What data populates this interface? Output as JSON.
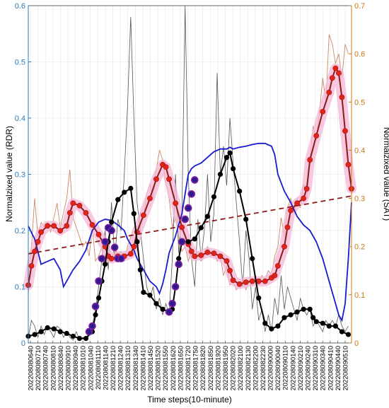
{
  "chart_data": {
    "type": "line",
    "xlabel": "Time steps(10-minute)",
    "ylabel_left": "Normalzixed value (RDR)",
    "ylabel_right": "Normalzixed value (SAT)",
    "ylim_left": [
      0,
      0.6
    ],
    "ylim_right": [
      0,
      0.7
    ],
    "grid": true,
    "colors": {
      "rdr_raw": "#555555",
      "rdr_smooth": "#000000",
      "rdr_highlight": "#7a1fa2",
      "sat_raw": "#c98a6a",
      "sat_smooth": "#8b1a1a",
      "sat_marker": "#e0241a",
      "sat_halo": "#f5b5d5",
      "blue": "#1a1ad0",
      "trend": "#8b1a1a",
      "left_axis": "#2a7ab8",
      "right_axis": "#c87818"
    },
    "left_ticks": [
      "0",
      "0.1",
      "0.2",
      "0.3",
      "0.4",
      "0.5",
      "0.6"
    ],
    "right_ticks": [
      "0",
      "0.1",
      "0.2",
      "0.3",
      "0.4",
      "0.5",
      "0.6",
      "0.7"
    ],
    "x_tick_labels": [
      "202208080640",
      "202208080710",
      "202208080740",
      "202208080810",
      "202208080840",
      "202208080910",
      "202208080940",
      "202208081010",
      "202208081040",
      "202208081110",
      "202208081140",
      "202208081210",
      "202208081240",
      "202208081310",
      "202208081340",
      "202208081410",
      "202208081450",
      "202208081520",
      "202208081550",
      "202208081620",
      "202208081650",
      "202208081720",
      "202208081750",
      "202208081820",
      "202208081850",
      "202208081920",
      "202208081950",
      "202208082020",
      "202208082100",
      "202208082130",
      "202208082200",
      "202208082230",
      "202208090000",
      "202208090040",
      "202208090110",
      "202208090140",
      "202208090210",
      "202208090240",
      "202208090310",
      "202208090340",
      "202208090410",
      "202208090440",
      "202208090510"
    ],
    "rdr_smooth": [
      [
        0,
        0.012
      ],
      [
        2,
        0.015
      ],
      [
        4,
        0.02
      ],
      [
        6,
        0.027
      ],
      [
        8,
        0.025
      ],
      [
        10,
        0.02
      ],
      [
        12,
        0.017
      ],
      [
        14,
        0.012
      ],
      [
        16,
        0.008
      ],
      [
        18,
        0.008
      ],
      [
        20,
        0.02
      ],
      [
        21,
        0.05
      ],
      [
        22,
        0.08
      ],
      [
        23,
        0.11
      ],
      [
        24,
        0.14
      ],
      [
        25,
        0.18
      ],
      [
        26,
        0.215
      ],
      [
        28,
        0.255
      ],
      [
        30,
        0.268
      ],
      [
        32,
        0.275
      ],
      [
        33,
        0.23
      ],
      [
        34,
        0.18
      ],
      [
        35,
        0.13
      ],
      [
        36,
        0.09
      ],
      [
        38,
        0.085
      ],
      [
        40,
        0.07
      ],
      [
        42,
        0.06
      ],
      [
        44,
        0.055
      ],
      [
        45,
        0.06
      ],
      [
        46,
        0.1
      ],
      [
        47,
        0.15
      ],
      [
        48,
        0.18
      ],
      [
        50,
        0.18
      ],
      [
        52,
        0.185
      ],
      [
        54,
        0.205
      ],
      [
        56,
        0.225
      ],
      [
        58,
        0.26
      ],
      [
        60,
        0.3
      ],
      [
        62,
        0.33
      ],
      [
        63,
        0.338
      ],
      [
        64,
        0.31
      ],
      [
        66,
        0.27
      ],
      [
        68,
        0.22
      ],
      [
        70,
        0.15
      ],
      [
        72,
        0.08
      ],
      [
        74,
        0.035
      ],
      [
        76,
        0.025
      ],
      [
        78,
        0.03
      ],
      [
        80,
        0.045
      ],
      [
        82,
        0.05
      ],
      [
        84,
        0.055
      ],
      [
        86,
        0.06
      ],
      [
        88,
        0.06
      ],
      [
        89,
        0.045
      ],
      [
        90,
        0.038
      ],
      [
        92,
        0.035
      ],
      [
        94,
        0.03
      ],
      [
        96,
        0.03
      ],
      [
        98,
        0.02
      ],
      [
        100,
        0.015
      ]
    ],
    "rdr_highlight": [
      [
        19,
        0.02
      ],
      [
        20,
        0.03
      ],
      [
        21,
        0.065
      ],
      [
        22,
        0.11
      ],
      [
        23,
        0.15
      ],
      [
        24,
        0.18
      ],
      [
        25,
        0.205
      ],
      [
        26,
        0.2
      ],
      [
        27,
        0.17
      ],
      [
        28,
        0.15
      ],
      [
        29,
        0.15
      ],
      [
        44,
        0.055
      ],
      [
        45,
        0.07
      ],
      [
        46,
        0.1
      ],
      [
        47,
        0.14
      ],
      [
        48,
        0.18
      ],
      [
        49,
        0.22
      ],
      [
        50,
        0.24
      ],
      [
        51,
        0.265
      ],
      [
        52,
        0.29
      ]
    ],
    "rdr_raw": [
      [
        0,
        0.01
      ],
      [
        1,
        0.04
      ],
      [
        2,
        0.03
      ],
      [
        3,
        0.01
      ],
      [
        4,
        0.03
      ],
      [
        5,
        0.015
      ],
      [
        6,
        0.03
      ],
      [
        7,
        0.02
      ],
      [
        8,
        0.01
      ],
      [
        9,
        0.03
      ],
      [
        10,
        0.025
      ],
      [
        11,
        0.01
      ],
      [
        12,
        0.02
      ],
      [
        13,
        0.01
      ],
      [
        14,
        0.005
      ],
      [
        15,
        0.02
      ],
      [
        16,
        0.005
      ],
      [
        17,
        0.01
      ],
      [
        18,
        0.005
      ],
      [
        19,
        0.02
      ],
      [
        20,
        0.03
      ],
      [
        21,
        0.06
      ],
      [
        22,
        0.1
      ],
      [
        23,
        0.15
      ],
      [
        24,
        0.2
      ],
      [
        25,
        0.13
      ],
      [
        26,
        0.25
      ],
      [
        27,
        0.15
      ],
      [
        28,
        0.22
      ],
      [
        29,
        0.2
      ],
      [
        30,
        0.3
      ],
      [
        31,
        0.42
      ],
      [
        32,
        0.58
      ],
      [
        33,
        0.4
      ],
      [
        34,
        0.25
      ],
      [
        35,
        0.2
      ],
      [
        36,
        0.15
      ],
      [
        37,
        0.1
      ],
      [
        38,
        0.08
      ],
      [
        39,
        0.1
      ],
      [
        40,
        0.06
      ],
      [
        41,
        0.08
      ],
      [
        42,
        0.05
      ],
      [
        43,
        0.07
      ],
      [
        44,
        0.05
      ],
      [
        45,
        0.15
      ],
      [
        46,
        0.3
      ],
      [
        47,
        0.16
      ],
      [
        48,
        0.23
      ],
      [
        49,
        0.6
      ],
      [
        50,
        0.3
      ],
      [
        51,
        0.15
      ],
      [
        52,
        0.1
      ],
      [
        53,
        0.22
      ],
      [
        54,
        0.15
      ],
      [
        55,
        0.2
      ],
      [
        56,
        0.3
      ],
      [
        57,
        0.18
      ],
      [
        58,
        0.23
      ],
      [
        59,
        0.48
      ],
      [
        60,
        0.3
      ],
      [
        61,
        0.35
      ],
      [
        62,
        0.28
      ],
      [
        63,
        0.4
      ],
      [
        64,
        0.32
      ],
      [
        65,
        0.25
      ],
      [
        66,
        0.18
      ],
      [
        67,
        0.1
      ],
      [
        68,
        0.2
      ],
      [
        69,
        0.15
      ],
      [
        70,
        0.06
      ],
      [
        71,
        0.1
      ],
      [
        72,
        0.04
      ],
      [
        73,
        0.06
      ],
      [
        74,
        0.02
      ],
      [
        75,
        0.05
      ],
      [
        76,
        0.02
      ],
      [
        77,
        0.08
      ],
      [
        78,
        0.05
      ],
      [
        79,
        0.12
      ],
      [
        80,
        0.06
      ],
      [
        81,
        0.1
      ],
      [
        82,
        0.08
      ],
      [
        83,
        0.06
      ],
      [
        84,
        0.04
      ],
      [
        85,
        0.08
      ],
      [
        86,
        0.06
      ],
      [
        87,
        0.05
      ],
      [
        88,
        0.06
      ],
      [
        89,
        0.03
      ],
      [
        90,
        0.04
      ],
      [
        91,
        0.03
      ],
      [
        92,
        0.02
      ],
      [
        93,
        0.04
      ],
      [
        94,
        0.03
      ],
      [
        95,
        0.04
      ],
      [
        96,
        0.03
      ],
      [
        97,
        0.05
      ],
      [
        98,
        0.03
      ],
      [
        99,
        0.02
      ],
      [
        100,
        0.03
      ]
    ],
    "sat_smooth": [
      [
        0,
        0.12
      ],
      [
        1,
        0.16
      ],
      [
        2,
        0.19
      ],
      [
        3,
        0.21
      ],
      [
        4,
        0.23
      ],
      [
        6,
        0.243
      ],
      [
        8,
        0.243
      ],
      [
        10,
        0.233
      ],
      [
        12,
        0.243
      ],
      [
        13,
        0.27
      ],
      [
        14,
        0.29
      ],
      [
        16,
        0.285
      ],
      [
        18,
        0.27
      ],
      [
        20,
        0.245
      ],
      [
        22,
        0.225
      ],
      [
        24,
        0.2
      ],
      [
        25,
        0.18
      ],
      [
        26,
        0.175
      ],
      [
        28,
        0.18
      ],
      [
        30,
        0.18
      ],
      [
        32,
        0.185
      ],
      [
        33,
        0.2
      ],
      [
        34,
        0.23
      ],
      [
        36,
        0.265
      ],
      [
        38,
        0.3
      ],
      [
        40,
        0.34
      ],
      [
        42,
        0.37
      ],
      [
        43,
        0.365
      ],
      [
        44,
        0.34
      ],
      [
        46,
        0.29
      ],
      [
        48,
        0.24
      ],
      [
        50,
        0.205
      ],
      [
        51,
        0.19
      ],
      [
        52,
        0.18
      ],
      [
        54,
        0.182
      ],
      [
        56,
        0.188
      ],
      [
        58,
        0.186
      ],
      [
        60,
        0.18
      ],
      [
        62,
        0.17
      ],
      [
        63,
        0.15
      ],
      [
        64,
        0.13
      ],
      [
        66,
        0.122
      ],
      [
        68,
        0.126
      ],
      [
        70,
        0.128
      ],
      [
        72,
        0.128
      ],
      [
        74,
        0.128
      ],
      [
        76,
        0.135
      ],
      [
        77,
        0.14
      ],
      [
        78,
        0.16
      ],
      [
        80,
        0.2
      ],
      [
        81,
        0.24
      ],
      [
        82,
        0.275
      ],
      [
        84,
        0.29
      ],
      [
        86,
        0.3
      ],
      [
        87,
        0.32
      ],
      [
        88,
        0.38
      ],
      [
        90,
        0.43
      ],
      [
        92,
        0.48
      ],
      [
        94,
        0.52
      ],
      [
        95,
        0.55
      ],
      [
        96,
        0.57
      ],
      [
        97,
        0.56
      ],
      [
        98,
        0.51
      ],
      [
        99,
        0.44
      ],
      [
        100,
        0.37
      ],
      [
        101,
        0.32
      ]
    ],
    "sat_raw": [
      [
        0,
        0.1
      ],
      [
        1,
        0.2
      ],
      [
        2,
        0.3
      ],
      [
        3,
        0.22
      ],
      [
        4,
        0.25
      ],
      [
        5,
        0.24
      ],
      [
        6,
        0.25
      ],
      [
        7,
        0.23
      ],
      [
        8,
        0.26
      ],
      [
        9,
        0.29
      ],
      [
        10,
        0.24
      ],
      [
        11,
        0.27
      ],
      [
        12,
        0.3
      ],
      [
        13,
        0.36
      ],
      [
        14,
        0.26
      ],
      [
        15,
        0.24
      ],
      [
        16,
        0.22
      ],
      [
        17,
        0.2
      ],
      [
        18,
        0.21
      ],
      [
        19,
        0.18
      ],
      [
        20,
        0.24
      ],
      [
        21,
        0.17
      ],
      [
        22,
        0.18
      ],
      [
        23,
        0.2
      ],
      [
        24,
        0.16
      ],
      [
        25,
        0.18
      ],
      [
        26,
        0.17
      ],
      [
        27,
        0.2
      ],
      [
        28,
        0.18
      ],
      [
        29,
        0.19
      ],
      [
        30,
        0.17
      ],
      [
        31,
        0.2
      ],
      [
        32,
        0.22
      ],
      [
        33,
        0.24
      ],
      [
        34,
        0.23
      ],
      [
        35,
        0.27
      ],
      [
        36,
        0.26
      ],
      [
        37,
        0.31
      ],
      [
        38,
        0.33
      ],
      [
        39,
        0.3
      ],
      [
        40,
        0.36
      ],
      [
        41,
        0.4
      ],
      [
        42,
        0.38
      ],
      [
        43,
        0.33
      ],
      [
        44,
        0.3
      ],
      [
        45,
        0.24
      ],
      [
        46,
        0.26
      ],
      [
        47,
        0.22
      ],
      [
        48,
        0.19
      ],
      [
        49,
        0.2
      ],
      [
        50,
        0.17
      ],
      [
        51,
        0.19
      ],
      [
        52,
        0.18
      ],
      [
        53,
        0.19
      ],
      [
        54,
        0.17
      ],
      [
        55,
        0.18
      ],
      [
        56,
        0.2
      ],
      [
        57,
        0.18
      ],
      [
        58,
        0.19
      ],
      [
        59,
        0.17
      ],
      [
        60,
        0.18
      ],
      [
        61,
        0.14
      ],
      [
        62,
        0.16
      ],
      [
        63,
        0.12
      ],
      [
        64,
        0.13
      ],
      [
        65,
        0.11
      ],
      [
        66,
        0.12
      ],
      [
        67,
        0.13
      ],
      [
        68,
        0.11
      ],
      [
        69,
        0.13
      ],
      [
        70,
        0.12
      ],
      [
        71,
        0.14
      ],
      [
        72,
        0.12
      ],
      [
        73,
        0.14
      ],
      [
        74,
        0.13
      ],
      [
        75,
        0.15
      ],
      [
        76,
        0.14
      ],
      [
        77,
        0.18
      ],
      [
        78,
        0.2
      ],
      [
        79,
        0.26
      ],
      [
        80,
        0.22
      ],
      [
        81,
        0.28
      ],
      [
        82,
        0.3
      ],
      [
        83,
        0.27
      ],
      [
        84,
        0.3
      ],
      [
        85,
        0.28
      ],
      [
        86,
        0.33
      ],
      [
        87,
        0.3
      ],
      [
        88,
        0.38
      ],
      [
        89,
        0.45
      ],
      [
        90,
        0.42
      ],
      [
        91,
        0.48
      ],
      [
        92,
        0.55
      ],
      [
        93,
        0.5
      ],
      [
        94,
        0.64
      ],
      [
        95,
        0.62
      ],
      [
        96,
        0.58
      ],
      [
        97,
        0.6
      ],
      [
        98,
        0.55
      ],
      [
        99,
        0.62
      ],
      [
        100,
        0.6
      ]
    ],
    "blue_line": [
      [
        0,
        0.208
      ],
      [
        2,
        0.185
      ],
      [
        4,
        0.14
      ],
      [
        6,
        0.145
      ],
      [
        8,
        0.15
      ],
      [
        9,
        0.14
      ],
      [
        10,
        0.13
      ],
      [
        11,
        0.1
      ],
      [
        12,
        0.11
      ],
      [
        14,
        0.13
      ],
      [
        16,
        0.145
      ],
      [
        18,
        0.165
      ],
      [
        20,
        0.2
      ],
      [
        22,
        0.215
      ],
      [
        24,
        0.22
      ],
      [
        26,
        0.218
      ],
      [
        28,
        0.21
      ],
      [
        30,
        0.2
      ],
      [
        31,
        0.185
      ],
      [
        32,
        0.175
      ],
      [
        33,
        0.165
      ],
      [
        34,
        0.15
      ],
      [
        36,
        0.13
      ],
      [
        38,
        0.11
      ],
      [
        40,
        0.1
      ],
      [
        41,
        0.088
      ],
      [
        42,
        0.105
      ],
      [
        43,
        0.13
      ],
      [
        44,
        0.16
      ],
      [
        46,
        0.19
      ],
      [
        48,
        0.23
      ],
      [
        49,
        0.265
      ],
      [
        50,
        0.3
      ],
      [
        51,
        0.31
      ],
      [
        52,
        0.315
      ],
      [
        54,
        0.32
      ],
      [
        56,
        0.33
      ],
      [
        58,
        0.34
      ],
      [
        60,
        0.345
      ],
      [
        62,
        0.345
      ],
      [
        63,
        0.348
      ],
      [
        64,
        0.345
      ],
      [
        66,
        0.348
      ],
      [
        68,
        0.35
      ],
      [
        70,
        0.353
      ],
      [
        72,
        0.355
      ],
      [
        74,
        0.355
      ],
      [
        76,
        0.35
      ],
      [
        77,
        0.335
      ],
      [
        78,
        0.3
      ],
      [
        80,
        0.27
      ],
      [
        82,
        0.25
      ],
      [
        84,
        0.225
      ],
      [
        86,
        0.21
      ],
      [
        88,
        0.2
      ],
      [
        90,
        0.18
      ],
      [
        92,
        0.15
      ],
      [
        94,
        0.11
      ],
      [
        96,
        0.07
      ],
      [
        97,
        0.05
      ],
      [
        98,
        0.04
      ],
      [
        99,
        0.07
      ],
      [
        100,
        0.15
      ],
      [
        101,
        0.25
      ]
    ],
    "trend_line_right": [
      [
        0,
        0.185
      ],
      [
        101,
        0.305
      ]
    ]
  }
}
